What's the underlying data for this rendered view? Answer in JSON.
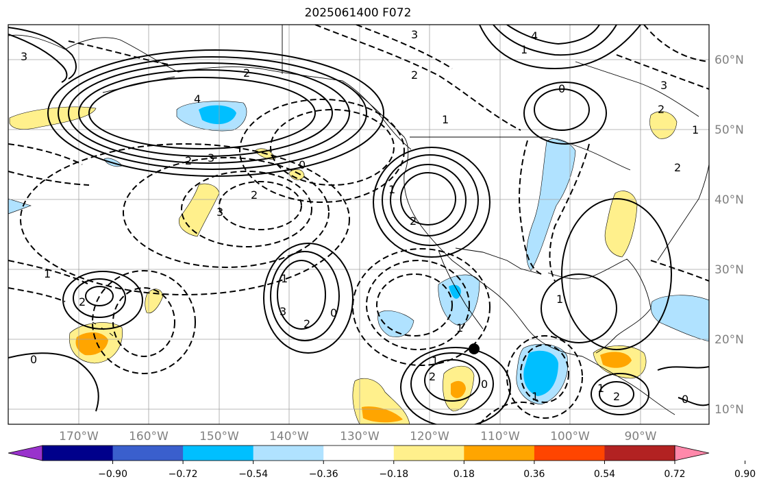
{
  "title": "2025061400 F072",
  "map": {
    "lon_ticks": [
      "170°W",
      "160°W",
      "150°W",
      "140°W",
      "130°W",
      "120°W",
      "110°W",
      "100°W",
      "90°W"
    ],
    "lat_ticks": [
      "60°N",
      "50°N",
      "40°N",
      "30°N",
      "20°N",
      "10°N"
    ]
  },
  "colorbar": {
    "colors": [
      "#9932cc",
      "#00008b",
      "#3a5fcd",
      "#00bfff",
      "#b0e2ff",
      "#ffffff",
      "#fff08c",
      "#ffa500",
      "#ff4500",
      "#b22222",
      "#ff88aa"
    ],
    "labels": [
      "−0.90",
      "−0.72",
      "−0.54",
      "−0.36",
      "−0.18",
      "0.18",
      "0.36",
      "0.54",
      "0.72",
      "0.90"
    ]
  },
  "contour_labels": [
    "2",
    "3",
    "4",
    "0",
    "2",
    "3",
    "3",
    "4",
    "1",
    "1",
    "2",
    "0",
    "1",
    "2",
    "2",
    "3",
    "2",
    "3",
    "0",
    "1",
    "2",
    "3",
    "2",
    "1",
    "1",
    "2",
    "0",
    "2",
    "0",
    "1",
    "1",
    "2",
    "1",
    "0",
    "1",
    "1"
  ],
  "marker": {
    "label": "storm-center-marker"
  }
}
